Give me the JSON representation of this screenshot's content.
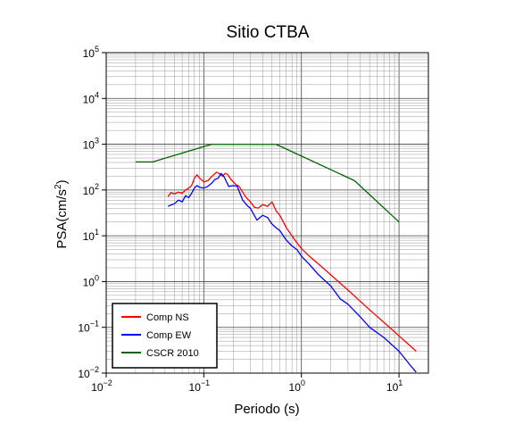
{
  "chart_data": {
    "type": "line",
    "title": "Sitio CTBA",
    "xlabel": "Periodo (s)",
    "ylabel_base": "PSA(cm/s",
    "ylabel_sup": "2",
    "ylabel_close": ")",
    "x_scale": "log",
    "y_scale": "log",
    "xlim": [
      0.01,
      20
    ],
    "ylim": [
      0.01,
      100000
    ],
    "grid": true,
    "legend_position": "bottom-left",
    "x_ticks": [
      {
        "base": "10",
        "exp": "−2"
      },
      {
        "base": "10",
        "exp": "−1"
      },
      {
        "base": "10",
        "exp": "0"
      },
      {
        "base": "10",
        "exp": "1"
      }
    ],
    "y_ticks": [
      {
        "base": "10",
        "exp": "−2"
      },
      {
        "base": "10",
        "exp": "−1"
      },
      {
        "base": "10",
        "exp": "0"
      },
      {
        "base": "10",
        "exp": "1"
      },
      {
        "base": "10",
        "exp": "2"
      },
      {
        "base": "10",
        "exp": "3"
      },
      {
        "base": "10",
        "exp": "4"
      },
      {
        "base": "10",
        "exp": "5"
      }
    ],
    "series": [
      {
        "name": "Comp NS",
        "color": "#ff0000",
        "points": [
          [
            0.043,
            72
          ],
          [
            0.046,
            88
          ],
          [
            0.05,
            82
          ],
          [
            0.055,
            90
          ],
          [
            0.06,
            85
          ],
          [
            0.065,
            100
          ],
          [
            0.07,
            110
          ],
          [
            0.075,
            125
          ],
          [
            0.08,
            180
          ],
          [
            0.085,
            215
          ],
          [
            0.09,
            185
          ],
          [
            0.1,
            150
          ],
          [
            0.11,
            160
          ],
          [
            0.12,
            195
          ],
          [
            0.135,
            245
          ],
          [
            0.145,
            225
          ],
          [
            0.155,
            200
          ],
          [
            0.165,
            230
          ],
          [
            0.175,
            220
          ],
          [
            0.19,
            170
          ],
          [
            0.21,
            135
          ],
          [
            0.23,
            120
          ],
          [
            0.25,
            90
          ],
          [
            0.27,
            70
          ],
          [
            0.3,
            55
          ],
          [
            0.33,
            42
          ],
          [
            0.36,
            40
          ],
          [
            0.4,
            48
          ],
          [
            0.45,
            44
          ],
          [
            0.5,
            55
          ],
          [
            0.55,
            35
          ],
          [
            0.6,
            28
          ],
          [
            0.7,
            15
          ],
          [
            0.8,
            10
          ],
          [
            0.9,
            7
          ],
          [
            1.0,
            5.3
          ],
          [
            1.2,
            3.6
          ],
          [
            1.5,
            2.4
          ],
          [
            2.0,
            1.4
          ],
          [
            3.0,
            0.65
          ],
          [
            5.0,
            0.24
          ],
          [
            8.0,
            0.1
          ],
          [
            10.0,
            0.065
          ],
          [
            15.0,
            0.03
          ]
        ]
      },
      {
        "name": "Comp EW",
        "color": "#0000ff",
        "points": [
          [
            0.043,
            44
          ],
          [
            0.046,
            47
          ],
          [
            0.05,
            50
          ],
          [
            0.055,
            60
          ],
          [
            0.06,
            55
          ],
          [
            0.065,
            75
          ],
          [
            0.07,
            68
          ],
          [
            0.075,
            85
          ],
          [
            0.08,
            110
          ],
          [
            0.085,
            125
          ],
          [
            0.09,
            115
          ],
          [
            0.1,
            110
          ],
          [
            0.11,
            120
          ],
          [
            0.12,
            140
          ],
          [
            0.13,
            170
          ],
          [
            0.14,
            180
          ],
          [
            0.15,
            230
          ],
          [
            0.16,
            200
          ],
          [
            0.18,
            120
          ],
          [
            0.2,
            125
          ],
          [
            0.22,
            120
          ],
          [
            0.25,
            60
          ],
          [
            0.28,
            45
          ],
          [
            0.3,
            40
          ],
          [
            0.35,
            22
          ],
          [
            0.4,
            28
          ],
          [
            0.45,
            25
          ],
          [
            0.5,
            18
          ],
          [
            0.55,
            15
          ],
          [
            0.6,
            13
          ],
          [
            0.7,
            8
          ],
          [
            0.8,
            6
          ],
          [
            0.9,
            5
          ],
          [
            1.0,
            3.6
          ],
          [
            1.2,
            2.4
          ],
          [
            1.5,
            1.4
          ],
          [
            2.0,
            0.8
          ],
          [
            2.5,
            0.42
          ],
          [
            3.0,
            0.32
          ],
          [
            4.0,
            0.17
          ],
          [
            5.0,
            0.1
          ],
          [
            7.0,
            0.06
          ],
          [
            10.0,
            0.03
          ],
          [
            13.0,
            0.015
          ],
          [
            15.0,
            0.0105
          ]
        ]
      },
      {
        "name": "CSCR 2010",
        "color": "#006600",
        "points": [
          [
            0.02,
            410
          ],
          [
            0.03,
            410
          ],
          [
            0.12,
            1000
          ],
          [
            0.55,
            1000
          ],
          [
            3.5,
            160
          ],
          [
            10.0,
            20
          ]
        ]
      }
    ]
  }
}
